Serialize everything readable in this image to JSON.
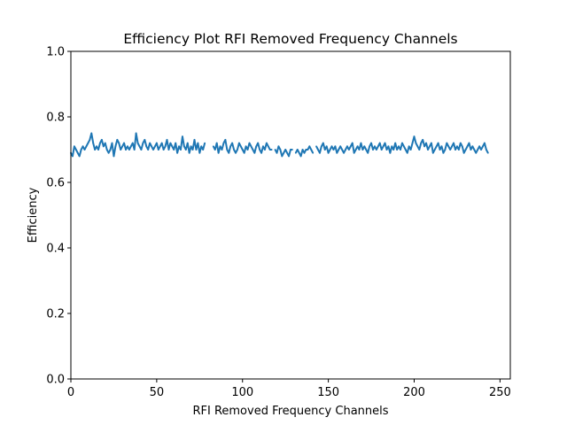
{
  "chart_data": {
    "type": "line",
    "title": "Efficiency Plot RFI Removed Frequency Channels",
    "xlabel": "RFI Removed Frequency Channels",
    "ylabel": "Efficiency",
    "xlim": [
      0,
      256
    ],
    "ylim": [
      0.0,
      1.0
    ],
    "xticks": [
      0,
      50,
      100,
      150,
      200,
      250
    ],
    "xtick_labels": [
      "0",
      "50",
      "100",
      "150",
      "200",
      "250"
    ],
    "yticks": [
      0.0,
      0.2,
      0.4,
      0.6,
      0.8,
      1.0
    ],
    "ytick_labels": [
      "0.0",
      "0.2",
      "0.4",
      "0.6",
      "0.8",
      "1.0"
    ],
    "grid": false,
    "legend": "none",
    "series": [
      {
        "color": "#1f77b4",
        "x": [
          0,
          1,
          2,
          3,
          4,
          5,
          6,
          7,
          8,
          9,
          10,
          11,
          12,
          13,
          14,
          15,
          16,
          17,
          18,
          19,
          20,
          21,
          22,
          23,
          24,
          25,
          26,
          27,
          28,
          29,
          30,
          31,
          32,
          33,
          34,
          35,
          36,
          37,
          38,
          39,
          40,
          41,
          42,
          43,
          44,
          45,
          46,
          47,
          48,
          49,
          50,
          51,
          52,
          53,
          54,
          55,
          56,
          57,
          58,
          59,
          60,
          61,
          62,
          63,
          64,
          65,
          66,
          67,
          68,
          69,
          70,
          71,
          72,
          73,
          74,
          75,
          76,
          77,
          78,
          79,
          80,
          81,
          82,
          83,
          84,
          85,
          86,
          87,
          88,
          89,
          90,
          91,
          92,
          93,
          94,
          95,
          96,
          97,
          98,
          99,
          100,
          101,
          102,
          103,
          104,
          105,
          106,
          107,
          108,
          109,
          110,
          111,
          112,
          113,
          114,
          115,
          116,
          117,
          118,
          119,
          120,
          121,
          122,
          123,
          124,
          125,
          126,
          127,
          128,
          129,
          130,
          131,
          132,
          133,
          134,
          135,
          136,
          137,
          138,
          139,
          140,
          141,
          142,
          143,
          144,
          145,
          146,
          147,
          148,
          149,
          150,
          151,
          152,
          153,
          154,
          155,
          156,
          157,
          158,
          159,
          160,
          161,
          162,
          163,
          164,
          165,
          166,
          167,
          168,
          169,
          170,
          171,
          172,
          173,
          174,
          175,
          176,
          177,
          178,
          179,
          180,
          181,
          182,
          183,
          184,
          185,
          186,
          187,
          188,
          189,
          190,
          191,
          192,
          193,
          194,
          195,
          196,
          197,
          198,
          199,
          200,
          201,
          202,
          203,
          204,
          205,
          206,
          207,
          208,
          209,
          210,
          211,
          212,
          213,
          214,
          215,
          216,
          217,
          218,
          219,
          220,
          221,
          222,
          223,
          224,
          225,
          226,
          227,
          228,
          229,
          230,
          231,
          232,
          233,
          234,
          235,
          236,
          237,
          238,
          239,
          240,
          241,
          242,
          243
        ],
        "y": [
          0.69,
          0.68,
          0.71,
          0.7,
          0.69,
          0.68,
          0.7,
          0.71,
          0.7,
          0.71,
          0.72,
          0.73,
          0.75,
          0.72,
          0.7,
          0.71,
          0.7,
          0.72,
          0.73,
          0.71,
          0.72,
          0.7,
          0.69,
          0.7,
          0.72,
          0.68,
          0.71,
          0.73,
          0.72,
          0.7,
          0.71,
          0.72,
          0.7,
          0.71,
          0.7,
          0.71,
          0.72,
          0.7,
          0.75,
          0.72,
          0.71,
          0.7,
          0.72,
          0.73,
          0.71,
          0.7,
          0.72,
          0.71,
          0.7,
          0.71,
          0.72,
          0.7,
          0.71,
          0.72,
          0.7,
          0.71,
          0.73,
          0.7,
          0.72,
          0.71,
          0.7,
          0.72,
          0.69,
          0.71,
          0.7,
          0.74,
          0.71,
          0.7,
          0.72,
          0.69,
          0.71,
          0.7,
          0.73,
          0.7,
          0.72,
          0.69,
          0.71,
          0.7,
          0.72,
          null,
          null,
          null,
          null,
          0.71,
          0.7,
          0.72,
          0.69,
          0.71,
          0.7,
          0.72,
          0.73,
          0.7,
          0.69,
          0.71,
          0.72,
          0.7,
          0.69,
          0.7,
          0.72,
          0.71,
          0.7,
          0.69,
          0.71,
          0.7,
          0.72,
          0.71,
          0.7,
          0.69,
          0.71,
          0.72,
          0.7,
          0.69,
          0.71,
          0.7,
          0.72,
          0.71,
          0.7,
          0.7,
          null,
          0.7,
          0.69,
          0.71,
          0.7,
          0.68,
          0.69,
          0.7,
          0.69,
          0.68,
          0.7,
          0.7,
          null,
          0.69,
          0.7,
          0.69,
          0.68,
          0.7,
          0.69,
          0.7,
          0.7,
          0.71,
          0.7,
          0.69,
          null,
          0.71,
          0.7,
          0.69,
          0.71,
          0.72,
          0.7,
          0.71,
          0.69,
          0.7,
          0.71,
          0.7,
          0.71,
          0.69,
          0.7,
          0.71,
          0.7,
          0.69,
          0.7,
          0.71,
          0.7,
          0.71,
          0.72,
          0.69,
          0.7,
          0.71,
          0.7,
          0.72,
          0.7,
          0.71,
          0.7,
          0.69,
          0.71,
          0.72,
          0.7,
          0.71,
          0.7,
          0.71,
          0.72,
          0.7,
          0.71,
          0.72,
          0.7,
          0.71,
          0.69,
          0.71,
          0.7,
          0.72,
          0.7,
          0.71,
          0.7,
          0.72,
          0.71,
          0.7,
          0.69,
          0.71,
          0.7,
          0.72,
          0.74,
          0.72,
          0.71,
          0.7,
          0.72,
          0.73,
          0.71,
          0.72,
          0.7,
          0.71,
          0.72,
          0.69,
          0.7,
          0.71,
          0.72,
          0.7,
          0.71,
          0.69,
          0.7,
          0.72,
          0.71,
          0.7,
          0.71,
          0.72,
          0.7,
          0.71,
          0.7,
          0.72,
          0.71,
          0.69,
          0.7,
          0.71,
          0.72,
          0.7,
          0.71,
          0.7,
          0.69,
          0.7,
          0.71,
          0.7,
          0.71,
          0.72,
          0.7,
          0.69
        ]
      }
    ]
  }
}
